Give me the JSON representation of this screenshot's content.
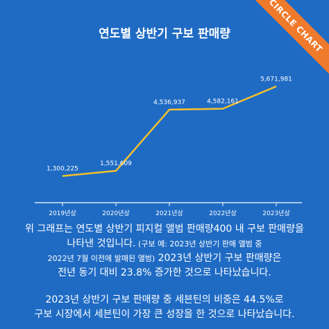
{
  "ribbon": "CIRCLE CHART",
  "chart_data": {
    "type": "line",
    "title": "연도별 상반기 구보 판매량",
    "categories": [
      "2019년상",
      "2020년상",
      "2021년상",
      "2022년상",
      "2023년상"
    ],
    "values": [
      1300225,
      1551609,
      4536937,
      4582161,
      5671981
    ],
    "value_labels": [
      "1,300,225",
      "1,551,609",
      "4,536,937",
      "4,582,161",
      "5,671,981"
    ],
    "ylim": [
      0,
      6500000
    ],
    "line_color": "#f5c02c",
    "grid": false
  },
  "caption": {
    "p1_line1": "위 그래프는 연도별 상반기 피지컬 앨범 판매량400 내 구보 판매량을",
    "p1_line2a": "나타낸 것입니다.",
    "p1_line2b": " (구보 예:  2023년 상반기 판매 앨범 중",
    "p1_line3a": "2022년 7월 이전에 발매된 앨범)",
    "p1_line3b": " 2023년 상반기 구보 판매량은",
    "p1_line4": "전년 동기 대비 23.8% 증가한 것으로 나타났습니다.",
    "p2_line1": "2023년 상반기 구보 판매량 중 세븐틴의 비중은 44.5%로",
    "p2_line2": "구보 시장에서 세븐틴이 가장 큰 성장을 한 것으로 나타났습니다."
  }
}
